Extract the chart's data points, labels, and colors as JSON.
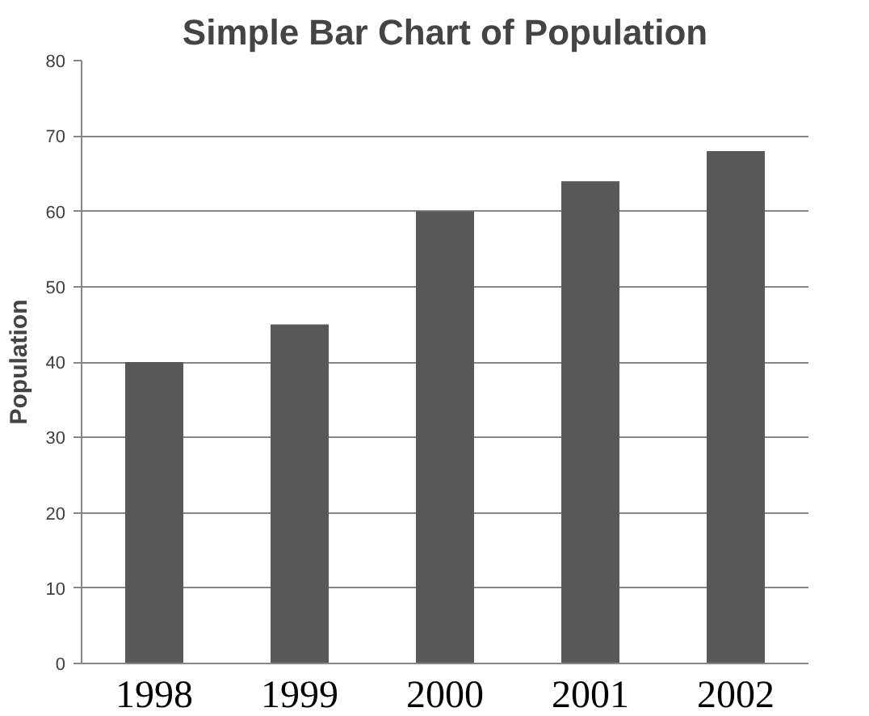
{
  "chart_data": {
    "type": "bar",
    "title": "Simple Bar Chart of Population",
    "ylabel": "Population",
    "categories": [
      "1998",
      "1999",
      "2000",
      "2001",
      "2002"
    ],
    "values": [
      40,
      45,
      60,
      64,
      68
    ],
    "color": "#595959",
    "ylim": [
      0,
      80
    ],
    "yticks": [
      0,
      10,
      20,
      30,
      40,
      50,
      60,
      70,
      80
    ],
    "grid": "y"
  }
}
